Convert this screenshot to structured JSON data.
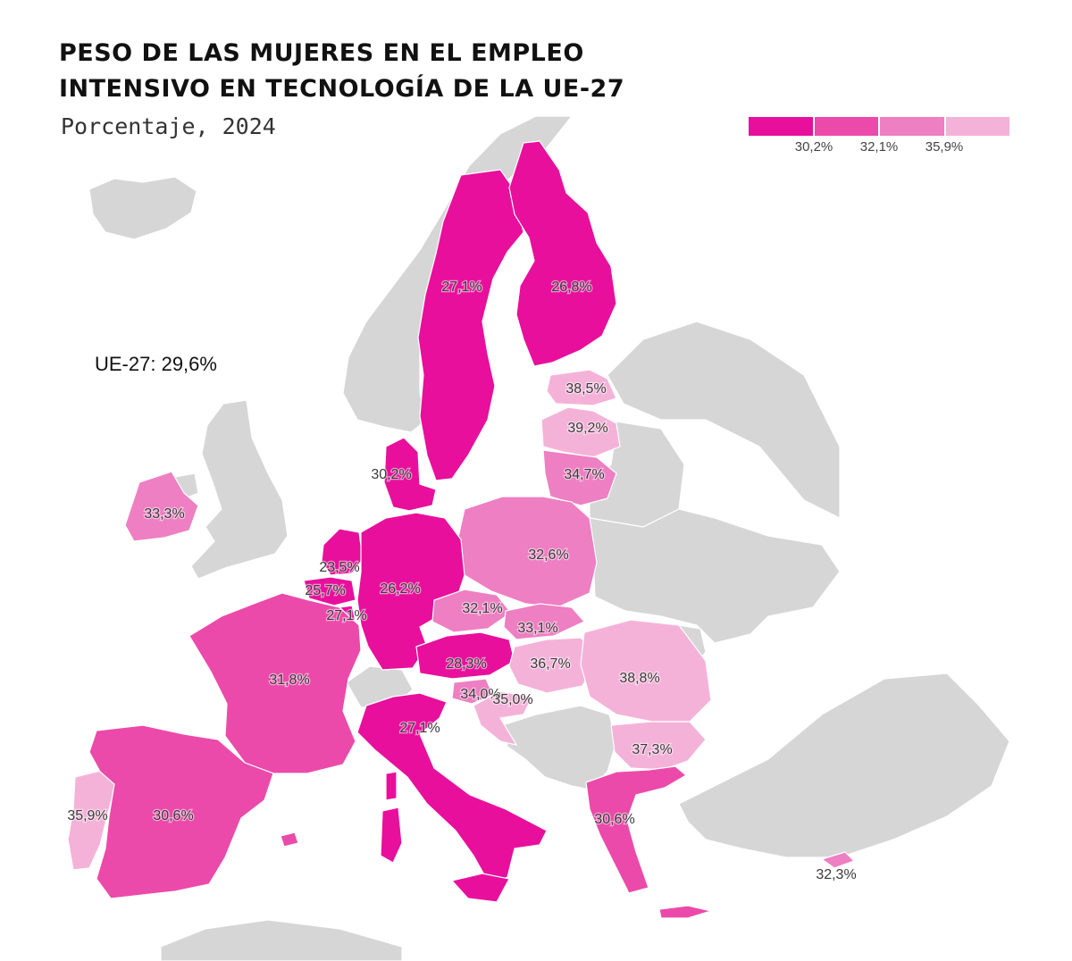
{
  "title_lines": [
    "PESO DE LAS MUJERES EN EL EMPLEO",
    "INTENSIVO EN TECNOLOGÍA DE LA UE-27"
  ],
  "subtitle": "Porcentaje, 2024",
  "eu_average": "UE-27: 29,6%",
  "legend": {
    "colors": [
      "#e80f9c",
      "#eb4aaa",
      "#ee7fc2",
      "#f5b2d8"
    ],
    "thresholds": [
      "30,2%",
      "32,1%",
      "35,9%"
    ]
  },
  "colors": {
    "no_data": "#d6d6d6",
    "label_text": "#3a3a3a"
  },
  "regions": [
    {
      "id": "sweden",
      "label": "27,1%",
      "value": 27.1
    },
    {
      "id": "finland",
      "label": "26,8%",
      "value": 26.8
    },
    {
      "id": "estonia",
      "label": "38,5%",
      "value": 38.5
    },
    {
      "id": "latvia",
      "label": "39,2%",
      "value": 39.2
    },
    {
      "id": "lithuania",
      "label": "34,7%",
      "value": 34.7
    },
    {
      "id": "denmark",
      "label": "30,2%",
      "value": 30.2
    },
    {
      "id": "ireland",
      "label": "33,3%",
      "value": 33.3
    },
    {
      "id": "poland",
      "label": "32,6%",
      "value": 32.6
    },
    {
      "id": "netherlands",
      "label": "23,5%",
      "value": 23.5
    },
    {
      "id": "belgium",
      "label": "25,7%",
      "value": 25.7
    },
    {
      "id": "luxembourg",
      "label": "27,1%",
      "value": 27.1
    },
    {
      "id": "germany",
      "label": "26,2%",
      "value": 26.2
    },
    {
      "id": "czechia",
      "label": "32,1%",
      "value": 32.1
    },
    {
      "id": "slovakia",
      "label": "33,1%",
      "value": 33.1
    },
    {
      "id": "austria",
      "label": "28,3%",
      "value": 28.3
    },
    {
      "id": "hungary",
      "label": "36,7%",
      "value": 36.7
    },
    {
      "id": "romania",
      "label": "38,8%",
      "value": 38.8
    },
    {
      "id": "france",
      "label": "31,8%",
      "value": 31.8
    },
    {
      "id": "slovenia",
      "label": "34,0%",
      "value": 34.0
    },
    {
      "id": "croatia",
      "label": "35,0%",
      "value": 35.0
    },
    {
      "id": "italy",
      "label": "27,1%",
      "value": 27.1
    },
    {
      "id": "bulgaria",
      "label": "37,3%",
      "value": 37.3
    },
    {
      "id": "portugal",
      "label": "35,9%",
      "value": 35.9
    },
    {
      "id": "spain",
      "label": "30,6%",
      "value": 30.6
    },
    {
      "id": "greece",
      "label": "30,6%",
      "value": 30.6
    },
    {
      "id": "cyprus",
      "label": "32,3%",
      "value": 32.3
    }
  ]
}
